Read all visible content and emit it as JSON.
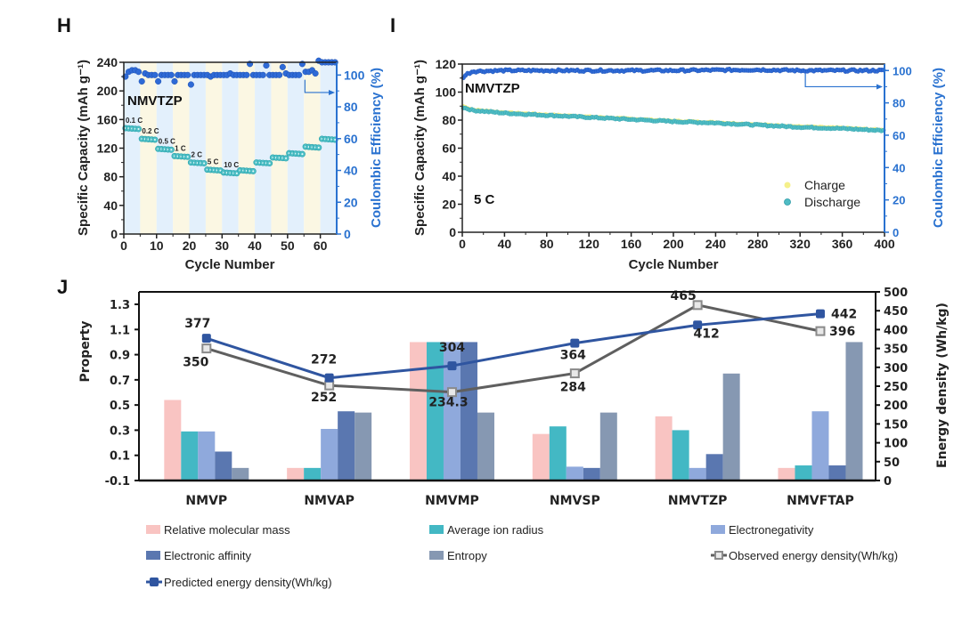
{
  "panels": {
    "H": "H",
    "I": "I",
    "J": "J"
  },
  "chart_data": [
    {
      "id": "H",
      "type": "scatter",
      "title": "",
      "annotation": "NMVTZP",
      "xlabel": "Cycle Number",
      "ylabel": "Specific Capacity (mAh g⁻¹)",
      "y2label": "Coulombic Efficiency (%)",
      "xlim": [
        0,
        65
      ],
      "ylim": [
        0,
        240
      ],
      "y2lim": [
        0,
        108
      ],
      "xticks": [
        0,
        10,
        20,
        30,
        40,
        50,
        60
      ],
      "yticks": [
        0,
        40,
        80,
        120,
        160,
        200,
        240
      ],
      "y2ticks": [
        0,
        20,
        40,
        60,
        80,
        100
      ],
      "xtick_labels": [
        "0",
        "10",
        "20",
        "30",
        "40",
        "50",
        "60"
      ],
      "ytick_labels": [
        "0",
        "40",
        "80",
        "120",
        "160",
        "200",
        "240"
      ],
      "y2tick_labels": [
        "0",
        "20",
        "40",
        "60",
        "80",
        "100"
      ],
      "band_colors": [
        "#e3f0fc",
        "#fbf7e3"
      ],
      "band_width_cycles": 5,
      "rate_steps": [
        {
          "label": "0.1 C",
          "start": 1,
          "end": 5,
          "capacity": 148
        },
        {
          "label": "0.2 C",
          "start": 6,
          "end": 10,
          "capacity": 133
        },
        {
          "label": "0.5 C",
          "start": 11,
          "end": 15,
          "capacity": 119
        },
        {
          "label": "1 C",
          "start": 16,
          "end": 20,
          "capacity": 109
        },
        {
          "label": "2 C",
          "start": 21,
          "end": 25,
          "capacity": 100
        },
        {
          "label": "5 C",
          "start": 26,
          "end": 30,
          "capacity": 90
        },
        {
          "label": "10 C",
          "start": 31,
          "end": 35,
          "capacity": 86
        },
        {
          "label": "",
          "start": 36,
          "end": 40,
          "capacity": 89
        },
        {
          "label": "",
          "start": 41,
          "end": 45,
          "capacity": 100
        },
        {
          "label": "",
          "start": 46,
          "end": 50,
          "capacity": 107
        },
        {
          "label": "",
          "start": 51,
          "end": 55,
          "capacity": 113
        },
        {
          "label": "",
          "start": 56,
          "end": 60,
          "capacity": 122
        },
        {
          "label": "",
          "start": 61,
          "end": 65,
          "capacity": 133
        }
      ],
      "coulombic_efficiency": {
        "baseline": 100,
        "x": [
          1,
          2,
          3,
          4,
          5,
          6,
          7,
          8,
          9,
          10,
          11,
          12,
          13,
          14,
          15,
          16,
          17,
          18,
          19,
          20,
          21,
          22,
          23,
          24,
          25,
          26,
          27,
          28,
          29,
          30,
          31,
          32,
          33,
          34,
          35,
          36,
          37,
          38,
          39,
          40,
          41,
          42,
          43,
          44,
          45,
          46,
          47,
          48,
          49,
          50,
          51,
          52,
          53,
          54,
          55,
          56,
          57,
          58,
          59,
          60,
          61,
          62,
          63,
          64,
          65
        ],
        "values": [
          99,
          102,
          103,
          103,
          102,
          96,
          101,
          100,
          100,
          100,
          96,
          100,
          100,
          100,
          100,
          96,
          100,
          100,
          100,
          100,
          94,
          100,
          100,
          100,
          100,
          100,
          99,
          100,
          100,
          100,
          100,
          100,
          101,
          100,
          100,
          100,
          100,
          100,
          107,
          100,
          100,
          100,
          100,
          106,
          100,
          100,
          100,
          100,
          105,
          101,
          100,
          100,
          100,
          100,
          107,
          102,
          102,
          103,
          101,
          109,
          108,
          108,
          108,
          108,
          108
        ],
        "color": "#2e6ad6"
      },
      "capacity_color": "#4fc0c6",
      "arrow": "points right to CE axis"
    },
    {
      "id": "I",
      "type": "scatter",
      "annotation": "NMVTZP",
      "rate_label": "5 C",
      "xlabel": "Cycle Number",
      "ylabel": "Specific Capacity (mAh g⁻¹)",
      "y2label": "Coulombic Efficiency (%)",
      "xlim": [
        0,
        400
      ],
      "ylim": [
        0,
        120
      ],
      "y2lim": [
        0,
        104
      ],
      "xticks": [
        0,
        40,
        80,
        120,
        160,
        200,
        240,
        280,
        320,
        360,
        400
      ],
      "yticks": [
        0,
        20,
        40,
        60,
        80,
        100,
        120
      ],
      "y2ticks": [
        0,
        20,
        40,
        60,
        80,
        100
      ],
      "xtick_labels": [
        "0",
        "40",
        "80",
        "120",
        "160",
        "200",
        "240",
        "280",
        "320",
        "360",
        "400"
      ],
      "ytick_labels": [
        "0",
        "20",
        "40",
        "60",
        "80",
        "100",
        "120"
      ],
      "y2tick_labels": [
        "0",
        "20",
        "40",
        "60",
        "80",
        "100"
      ],
      "legend": [
        {
          "label": "Charge",
          "color": "#f5f08a"
        },
        {
          "label": "Discharge",
          "color": "#4fbcc4"
        }
      ],
      "legend_position": "bottom-right",
      "series": [
        {
          "name": "Discharge",
          "x": [
            1,
            10,
            40,
            80,
            120,
            160,
            200,
            240,
            280,
            320,
            360,
            400
          ],
          "values": [
            89,
            87,
            85,
            83.5,
            82,
            80.5,
            79,
            78,
            76.5,
            75,
            74,
            72.5
          ]
        },
        {
          "name": "Charge",
          "x": [
            1,
            10,
            40,
            80,
            120,
            160,
            200,
            240,
            280,
            320,
            360,
            400
          ],
          "values": [
            90,
            87.5,
            85.5,
            84,
            82.5,
            81,
            79.5,
            78.5,
            77,
            75.5,
            74.5,
            73
          ]
        },
        {
          "name": "Coulombic Efficiency",
          "x": [
            1,
            5,
            10,
            40,
            120,
            200,
            280,
            320,
            360,
            400
          ],
          "values": [
            96,
            98,
            99.5,
            100,
            100,
            100,
            100.5,
            100,
            100,
            100
          ]
        }
      ],
      "arrow": "points right to CE axis"
    },
    {
      "id": "J",
      "type": "bar",
      "categories": [
        "NMVP",
        "NMVAP",
        "NMVMP",
        "NMVSP",
        "NMVTZP",
        "NMVFTAP"
      ],
      "ylabel": "Property",
      "y2label": "Energy density (Wh/kg)",
      "ylim": [
        -0.1,
        1.3
      ],
      "y2lim": [
        0,
        500
      ],
      "yticks": [
        -0.1,
        0.1,
        0.3,
        0.5,
        0.7,
        0.9,
        1.1,
        1.3
      ],
      "ytick_labels": [
        "-0.1",
        "0.1",
        "0.3",
        "0.5",
        "0.7",
        "0.9",
        "1.1",
        "1.3"
      ],
      "y2ticks": [
        0,
        50,
        100,
        150,
        200,
        250,
        300,
        350,
        400,
        450,
        500
      ],
      "y2tick_labels": [
        "0",
        "50",
        "100",
        "150",
        "200",
        "250",
        "300",
        "350",
        "400",
        "450",
        "500"
      ],
      "series": [
        {
          "name": "Relative molecular mass",
          "color": "#f9c4c2",
          "values": [
            0.54,
            0.0,
            1.0,
            0.27,
            0.41,
            0.0
          ]
        },
        {
          "name": "Average ion radius",
          "color": "#43b8c4",
          "values": [
            0.29,
            0.0,
            1.0,
            0.33,
            0.3,
            0.02
          ]
        },
        {
          "name": "Electronegativity",
          "color": "#8fa9dc",
          "values": [
            0.29,
            0.31,
            1.0,
            0.01,
            0.0,
            0.45
          ]
        },
        {
          "name": "Electronic affinity",
          "color": "#5a77b0",
          "values": [
            0.13,
            0.45,
            1.0,
            0.0,
            0.11,
            0.02
          ]
        },
        {
          "name": "Entropy",
          "color": "#8698b2",
          "values": [
            0.0,
            0.44,
            0.44,
            0.44,
            0.75,
            1.0
          ]
        }
      ],
      "lines": [
        {
          "name": "Observed energy density(Wh/kg)",
          "axis": "right",
          "color": "#5f5f5f",
          "marker": "hollow-square",
          "values": [
            350,
            252,
            234.3,
            284,
            465,
            396
          ],
          "labels": [
            "350",
            "252",
            "234.3",
            "284",
            "465",
            "396"
          ]
        },
        {
          "name": "Predicted energy density(Wh/kg)",
          "axis": "right",
          "color": "#2f55a0",
          "marker": "filled-square",
          "values": [
            377,
            272,
            304,
            364,
            412,
            442
          ],
          "labels": [
            "377",
            "272",
            "304",
            "364",
            "412",
            "442"
          ]
        }
      ],
      "legend": [
        {
          "label": "Relative molecular mass",
          "kind": "bar",
          "color": "#f9c4c2"
        },
        {
          "label": "Average ion radius",
          "kind": "bar",
          "color": "#43b8c4"
        },
        {
          "label": "Electronegativity",
          "kind": "bar",
          "color": "#8fa9dc"
        },
        {
          "label": "Electronic affinity",
          "kind": "bar",
          "color": "#5a77b0"
        },
        {
          "label": "Entropy",
          "kind": "bar",
          "color": "#8698b2"
        },
        {
          "label": "Observed energy density(Wh/kg)",
          "kind": "line-hollow",
          "color": "#5f5f5f"
        },
        {
          "label": "Predicted energy density(Wh/kg)",
          "kind": "line-filled",
          "color": "#2f55a0"
        }
      ],
      "legend_position": "bottom"
    }
  ]
}
